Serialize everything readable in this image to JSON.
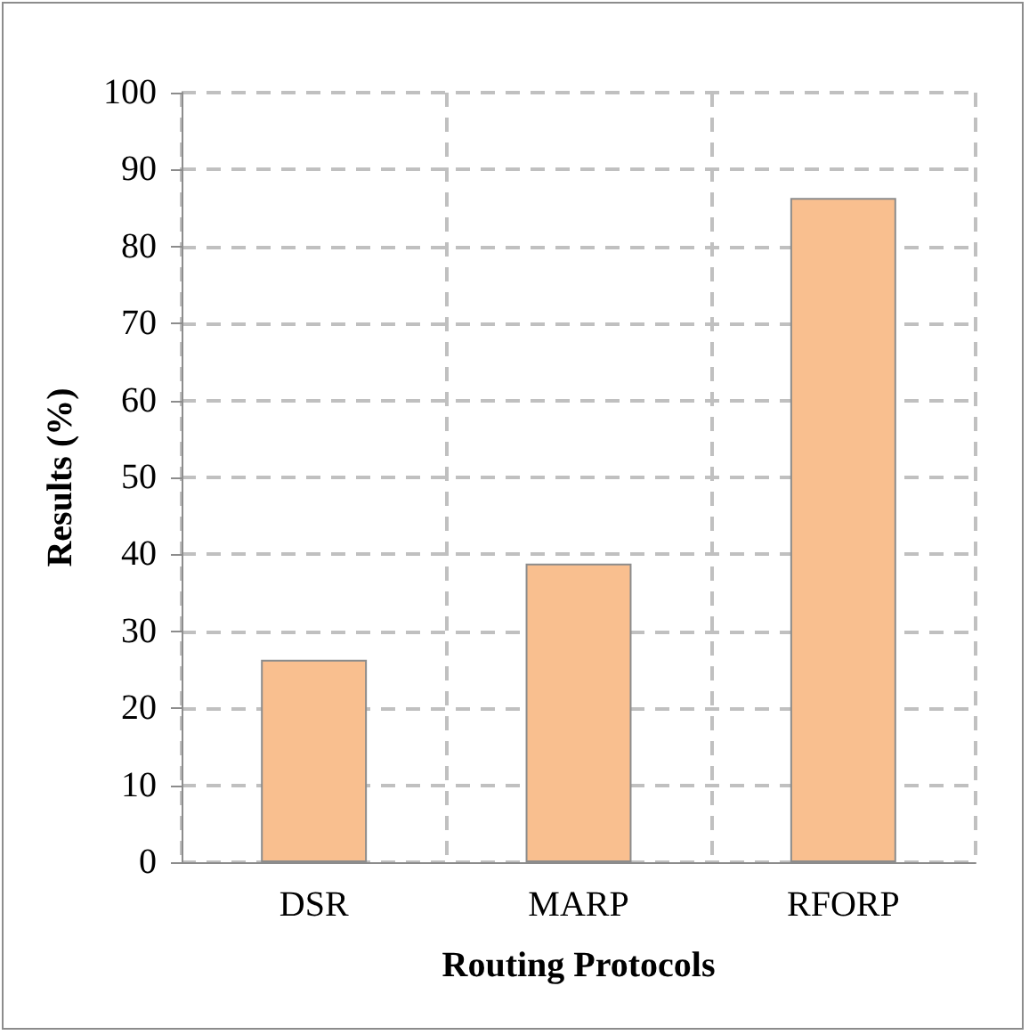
{
  "chart_data": {
    "type": "bar",
    "xlabel": "Routing Protocols",
    "ylabel": "Results (%)",
    "categories": [
      "DSR",
      "MARP",
      "RFORP"
    ],
    "values": [
      26.3,
      38.8,
      86.3
    ],
    "color": "#f9bf8f",
    "ylim": [
      0,
      100
    ],
    "yticks": [
      0,
      10,
      20,
      30,
      40,
      50,
      60,
      70,
      80,
      90,
      100
    ],
    "grid": true
  }
}
